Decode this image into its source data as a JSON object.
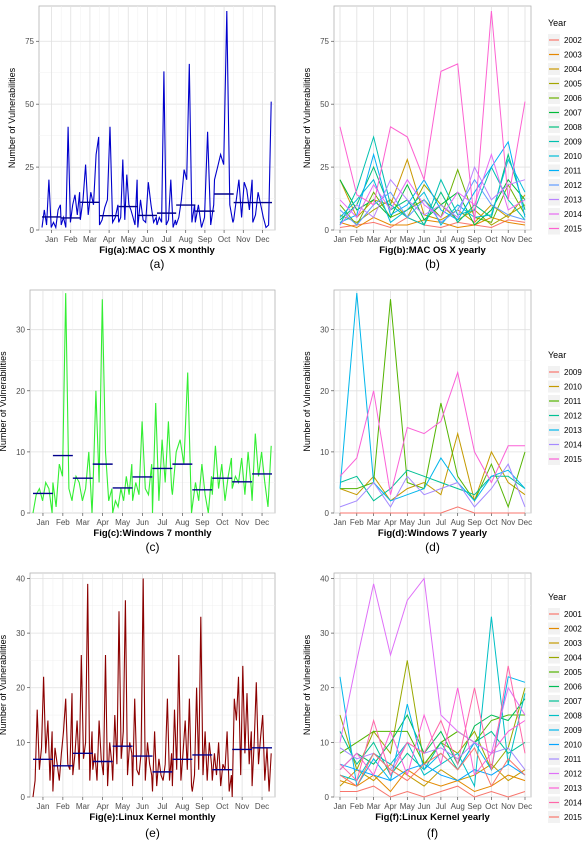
{
  "months": [
    "Jan",
    "Feb",
    "Mar",
    "Apr",
    "May",
    "Jun",
    "Jul",
    "Aug",
    "Sep",
    "Oct",
    "Nov",
    "Dec"
  ],
  "panels": [
    {
      "id": "a",
      "caption": "(a)",
      "type": "line",
      "title": "Fig(a):MAC OS X monthly",
      "ylabel": "Number of Vulnerabilities",
      "ylim": [
        0,
        89
      ],
      "yticks": [
        0,
        25,
        50,
        75
      ],
      "line_color": "#0000cc",
      "mean_color": "#00008b",
      "values_by_month": [
        [
          1,
          8,
          2,
          20,
          1,
          3,
          1,
          8,
          10
        ],
        [
          2,
          5,
          1,
          41,
          3,
          10,
          14,
          6,
          15
        ],
        [
          4,
          12,
          26,
          6,
          15,
          10,
          30,
          37
        ],
        [
          2,
          4,
          9,
          12,
          41,
          3,
          5,
          10
        ],
        [
          3,
          5,
          28,
          4,
          22,
          10,
          8,
          5,
          2,
          20
        ],
        [
          1,
          12,
          4,
          3,
          19,
          10,
          3,
          5
        ],
        [
          2,
          5,
          3,
          63,
          2,
          4,
          20,
          1,
          4
        ],
        [
          2,
          5,
          12,
          24,
          20,
          66,
          3,
          10
        ],
        [
          3,
          10,
          1,
          5,
          39,
          2,
          10
        ],
        [
          20,
          25,
          30,
          26,
          87,
          10,
          3
        ],
        [
          4,
          12,
          20,
          5,
          19,
          16,
          8,
          20
        ],
        [
          3,
          6,
          15,
          10,
          5,
          1,
          2,
          51
        ]
      ],
      "means": [
        5.2,
        4.8,
        11.0,
        5.7,
        9.3,
        5.8,
        6.7,
        9.9,
        7.5,
        14.3,
        10.9,
        10.9
      ]
    },
    {
      "id": "b",
      "caption": "(b)",
      "type": "multiline",
      "title": "Fig(b):MAC OS X yearly",
      "ylabel": "Number of Vulnerabilities",
      "ylim": [
        0,
        89
      ],
      "yticks": [
        0,
        25,
        50,
        75
      ],
      "legend_title": "Year",
      "series": [
        {
          "name": "2002",
          "color": "#F8766D",
          "values": [
            1,
            2,
            3,
            1,
            5,
            2,
            1,
            3,
            2,
            1,
            4,
            3
          ]
        },
        {
          "name": "2003",
          "color": "#E58700",
          "values": [
            3,
            1,
            5,
            2,
            2,
            4,
            3,
            1,
            2,
            5,
            3,
            2
          ]
        },
        {
          "name": "2004",
          "color": "#C99800",
          "values": [
            20,
            5,
            12,
            10,
            28,
            6,
            4,
            8,
            3,
            10,
            5,
            14
          ]
        },
        {
          "name": "2005",
          "color": "#A3A500",
          "values": [
            6,
            3,
            8,
            12,
            5,
            18,
            10,
            4,
            8,
            2,
            6,
            10
          ]
        },
        {
          "name": "2006",
          "color": "#6BB100",
          "values": [
            10,
            2,
            15,
            5,
            8,
            12,
            5,
            24,
            5,
            3,
            18,
            6
          ]
        },
        {
          "name": "2007",
          "color": "#00BA38",
          "values": [
            20,
            8,
            12,
            5,
            18,
            4,
            10,
            15,
            2,
            8,
            20,
            12
          ]
        },
        {
          "name": "2008",
          "color": "#00BF7D",
          "values": [
            4,
            10,
            25,
            8,
            12,
            2,
            15,
            3,
            10,
            5,
            30,
            8
          ]
        },
        {
          "name": "2009",
          "color": "#00C0AF",
          "values": [
            2,
            16,
            37,
            10,
            5,
            2,
            20,
            6,
            8,
            25,
            12,
            4
          ]
        },
        {
          "name": "2010",
          "color": "#00BCD8",
          "values": [
            5,
            12,
            20,
            3,
            8,
            15,
            2,
            10,
            5,
            6,
            28,
            15
          ]
        },
        {
          "name": "2011",
          "color": "#00B0F6",
          "values": [
            3,
            6,
            30,
            6,
            10,
            20,
            8,
            4,
            15,
            25,
            35,
            5
          ]
        },
        {
          "name": "2012",
          "color": "#619CFF",
          "values": [
            8,
            2,
            10,
            15,
            5,
            12,
            3,
            8,
            20,
            10,
            6,
            4
          ]
        },
        {
          "name": "2013",
          "color": "#B983FF",
          "values": [
            2,
            10,
            5,
            20,
            12,
            6,
            10,
            5,
            25,
            12,
            18,
            20
          ]
        },
        {
          "name": "2014",
          "color": "#E76BF3",
          "values": [
            12,
            5,
            18,
            8,
            20,
            10,
            5,
            15,
            10,
            30,
            8,
            12
          ]
        },
        {
          "name": "2015",
          "color": "#FD61D1",
          "values": [
            41,
            14,
            10,
            41,
            37,
            20,
            63,
            66,
            3,
            87,
            12,
            51
          ]
        }
      ]
    },
    {
      "id": "c",
      "caption": "(c)",
      "type": "line",
      "title": "Fig(c):Windows 7 monthly",
      "ylabel": "Number of Vulnerabilities",
      "ylim": [
        0,
        36.5
      ],
      "yticks": [
        0,
        10,
        20,
        30
      ],
      "line_color": "#33ee33",
      "mean_color": "#00008b",
      "values_by_month": [
        [
          0,
          3,
          4,
          2,
          5,
          4,
          0
        ],
        [
          5,
          1,
          8,
          6,
          36,
          4,
          2
        ],
        [
          3,
          6,
          5,
          2,
          4,
          10,
          0
        ],
        [
          3,
          20,
          5,
          35,
          10,
          2,
          4
        ],
        [
          0,
          2,
          1,
          4,
          2,
          6,
          3,
          8
        ],
        [
          2,
          5,
          3,
          15,
          4,
          3,
          8
        ],
        [
          0,
          18,
          2,
          12,
          5,
          15,
          4
        ],
        [
          3,
          10,
          12,
          8,
          23,
          0
        ],
        [
          1,
          5,
          2,
          8,
          3,
          0,
          6
        ],
        [
          3,
          11,
          4,
          8,
          2,
          6,
          9
        ],
        [
          4,
          6,
          5,
          9,
          3,
          10,
          4
        ],
        [
          2,
          13,
          6,
          10,
          5,
          1,
          11
        ]
      ],
      "means": [
        3.2,
        9.4,
        5.7,
        8.0,
        4.1,
        5.9,
        7.3,
        8.0,
        3.8,
        5.7,
        5.1,
        6.4
      ]
    },
    {
      "id": "d",
      "caption": "(d)",
      "type": "multiline",
      "title": "Fig(d):Windows 7 yearly",
      "ylabel": "Number of Vulnerabilities",
      "ylim": [
        0,
        36.5
      ],
      "yticks": [
        0,
        10,
        20,
        30
      ],
      "legend_title": "Year",
      "series": [
        {
          "name": "2009",
          "color": "#F8766D",
          "values": [
            0,
            0,
            0,
            0,
            0,
            0,
            0,
            1,
            0,
            0,
            0,
            0
          ]
        },
        {
          "name": "2010",
          "color": "#C49A00",
          "values": [
            4,
            3,
            6,
            2,
            4,
            5,
            3,
            13,
            2,
            10,
            5,
            3
          ]
        },
        {
          "name": "2011",
          "color": "#53B400",
          "values": [
            4,
            4,
            5,
            35,
            5,
            4,
            18,
            6,
            2,
            8,
            1,
            10
          ]
        },
        {
          "name": "2012",
          "color": "#00C094",
          "values": [
            5,
            6,
            2,
            4,
            7,
            6,
            5,
            4,
            3,
            6,
            6,
            4
          ]
        },
        {
          "name": "2013",
          "color": "#00B6EB",
          "values": [
            4,
            36,
            5,
            2,
            3,
            4,
            9,
            5,
            2,
            6,
            7,
            4
          ]
        },
        {
          "name": "2014",
          "color": "#A58AFF",
          "values": [
            1,
            2,
            5,
            1,
            6,
            3,
            4,
            5,
            1,
            4,
            8,
            1
          ]
        },
        {
          "name": "2015",
          "color": "#FB61D7",
          "values": [
            6,
            9,
            20,
            3,
            14,
            13,
            15,
            23,
            10,
            5,
            11,
            11
          ]
        }
      ]
    },
    {
      "id": "e",
      "caption": "(e)",
      "type": "line",
      "title": "Fig(e):Linux Kernel monthly",
      "ylabel": "Number of Vulnerabilities",
      "ylim": [
        0,
        41
      ],
      "yticks": [
        0,
        10,
        20,
        30,
        40
      ],
      "line_color": "#8b0000",
      "mean_color": "#00008b",
      "values_by_month": [
        [
          0,
          3,
          16,
          5,
          9,
          22,
          8,
          14,
          3,
          12
        ],
        [
          1,
          9,
          6,
          3,
          8,
          12,
          18,
          6,
          5,
          19
        ],
        [
          4,
          8,
          14,
          5,
          26,
          7,
          10,
          39,
          3,
          12
        ],
        [
          5,
          8,
          3,
          14,
          7,
          4,
          26,
          2,
          10,
          6
        ],
        [
          3,
          15,
          6,
          34,
          7,
          12,
          36,
          4,
          10,
          8
        ],
        [
          2,
          18,
          5,
          4,
          8,
          40,
          3,
          10,
          6,
          4
        ],
        [
          1,
          12,
          2,
          7,
          4,
          3,
          6,
          18,
          3,
          8
        ],
        [
          2,
          16,
          5,
          26,
          3,
          8,
          14,
          5,
          18,
          2
        ],
        [
          1,
          4,
          20,
          5,
          33,
          4,
          12,
          3,
          10,
          6
        ],
        [
          3,
          8,
          4,
          10,
          2,
          6,
          5,
          12,
          1,
          4
        ],
        [
          0,
          18,
          14,
          22,
          4,
          24,
          8,
          19,
          6,
          12
        ],
        [
          2,
          10,
          21,
          6,
          11,
          15,
          3,
          9,
          1,
          8
        ]
      ],
      "means": [
        6.9,
        5.7,
        8.0,
        6.5,
        9.3,
        7.5,
        4.6,
        6.9,
        7.7,
        5.0,
        8.7,
        9.0
      ]
    },
    {
      "id": "f",
      "caption": "(f)",
      "type": "multiline",
      "title": "Fig(f):Linux Kernel yearly",
      "ylabel": "Number of Vulnerabilities",
      "ylim": [
        0,
        41
      ],
      "yticks": [
        0,
        10,
        20,
        30,
        40
      ],
      "legend_title": "Year",
      "series": [
        {
          "name": "2001",
          "color": "#F8766D",
          "values": [
            1,
            1,
            2,
            0,
            1,
            0,
            1,
            2,
            0,
            1,
            0,
            1
          ]
        },
        {
          "name": "2002",
          "color": "#E38900",
          "values": [
            3,
            2,
            4,
            1,
            5,
            3,
            2,
            3,
            1,
            2,
            4,
            3
          ]
        },
        {
          "name": "2003",
          "color": "#C49A00",
          "values": [
            2,
            5,
            3,
            6,
            4,
            2,
            5,
            3,
            4,
            6,
            3,
            5
          ]
        },
        {
          "name": "2004",
          "color": "#99A800",
          "values": [
            15,
            5,
            12,
            8,
            25,
            6,
            10,
            8,
            12,
            5,
            9,
            20
          ]
        },
        {
          "name": "2005",
          "color": "#53B400",
          "values": [
            8,
            10,
            12,
            12,
            12,
            6,
            10,
            12,
            10,
            14,
            15,
            15
          ]
        },
        {
          "name": "2006",
          "color": "#00BC56",
          "values": [
            5,
            8,
            6,
            10,
            15,
            8,
            12,
            6,
            13,
            15,
            14,
            18
          ]
        },
        {
          "name": "2007",
          "color": "#00C094",
          "values": [
            12,
            6,
            10,
            4,
            8,
            5,
            10,
            5,
            10,
            12,
            8,
            10
          ]
        },
        {
          "name": "2008",
          "color": "#00BFC4",
          "values": [
            4,
            3,
            8,
            6,
            10,
            4,
            6,
            8,
            2,
            33,
            6,
            19
          ]
        },
        {
          "name": "2009",
          "color": "#00B6EB",
          "values": [
            22,
            2,
            7,
            3,
            17,
            5,
            8,
            5,
            10,
            5,
            22,
            21
          ]
        },
        {
          "name": "2010",
          "color": "#06A4FF",
          "values": [
            6,
            5,
            4,
            3,
            5,
            6,
            4,
            3,
            5,
            4,
            6,
            4
          ]
        },
        {
          "name": "2011",
          "color": "#A58AFF",
          "values": [
            9,
            7,
            8,
            5,
            10,
            8,
            9,
            7,
            10,
            8,
            9,
            5
          ]
        },
        {
          "name": "2012",
          "color": "#DF70F8",
          "values": [
            10,
            25,
            39,
            26,
            36,
            40,
            15,
            12,
            10,
            8,
            20,
            15
          ]
        },
        {
          "name": "2013",
          "color": "#FB61D7",
          "values": [
            5,
            8,
            4,
            12,
            4,
            15,
            6,
            20,
            4,
            8,
            12,
            14
          ]
        },
        {
          "name": "2014",
          "color": "#FF66A8",
          "values": [
            6,
            3,
            14,
            4,
            10,
            8,
            14,
            6,
            20,
            5,
            24,
            8
          ]
        },
        {
          "name": "2015",
          "color": "#F8766D",
          "values": [
            4,
            2,
            8,
            5,
            3,
            6,
            8,
            5,
            9,
            2,
            7,
            4
          ]
        }
      ]
    }
  ]
}
